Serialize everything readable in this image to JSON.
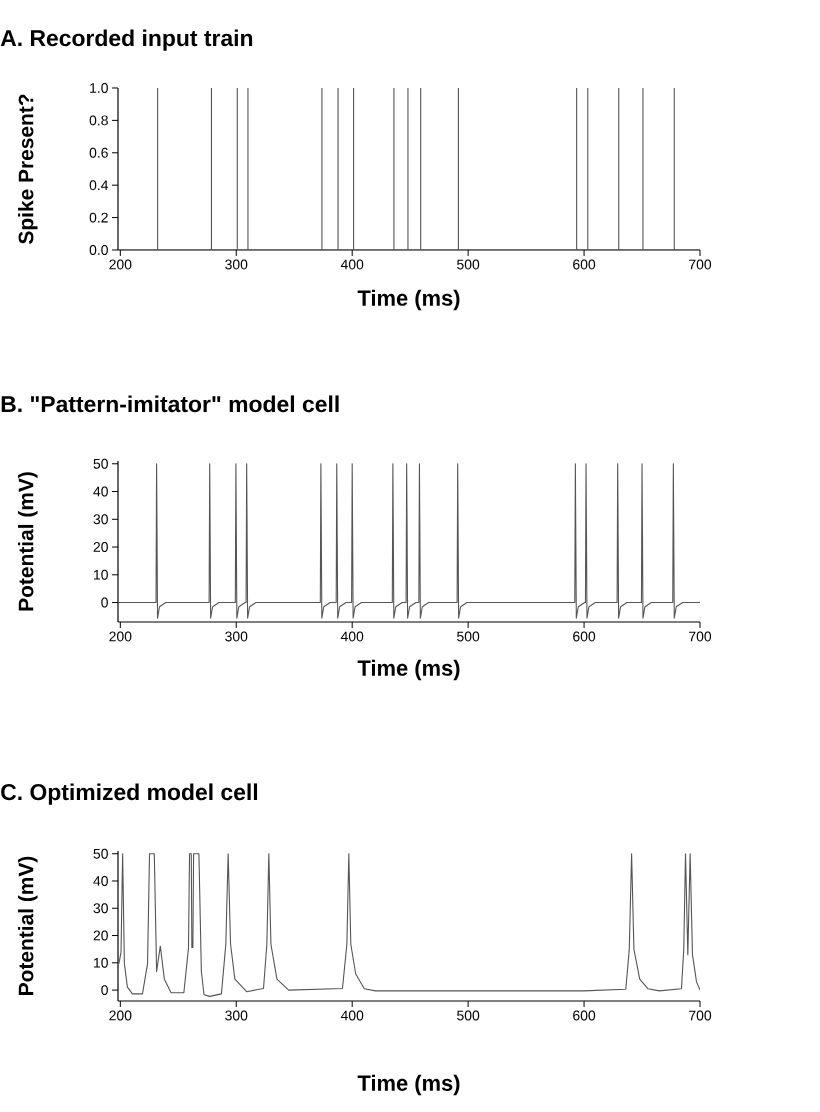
{
  "chart_data": [
    {
      "type": "line",
      "title": "A. Recorded input train",
      "xlabel": "Time (ms)",
      "ylabel": "Spike Present?",
      "xlim": [
        198,
        700
      ],
      "ylim": [
        0,
        1
      ],
      "xticks": [
        200,
        300,
        400,
        500,
        600,
        700
      ],
      "yticks": [
        {
          "value": 0,
          "label": "0.0"
        },
        {
          "value": 0.2,
          "label": "0.2"
        },
        {
          "value": 0.4,
          "label": "0.4"
        },
        {
          "value": 0.6,
          "label": "0.6"
        },
        {
          "value": 0.8,
          "label": "0.8"
        },
        {
          "value": 1,
          "label": "1.0"
        }
      ],
      "series": [
        {
          "color": "#555555",
          "x": [
            198,
            232.2,
            232.2,
            232.2,
            278.6,
            278.6,
            278.6,
            300.9,
            300.9,
            300.9,
            310.1,
            310.1,
            310.1,
            373.9,
            373.9,
            373.9,
            387.8,
            387.8,
            387.8,
            401.2,
            401.2,
            401.2,
            436.0,
            436.0,
            436.0,
            448.1,
            448.1,
            448.1,
            459.1,
            459.1,
            459.1,
            491.6,
            491.6,
            491.6,
            593.6,
            593.6,
            593.6,
            603.2,
            603.2,
            603.2,
            629.9,
            629.9,
            629.9,
            650.8,
            650.8,
            650.8,
            677.8,
            677.8,
            677.8,
            700
          ],
          "values": [
            0,
            0,
            1,
            0,
            0,
            1,
            0,
            0,
            1,
            0,
            0,
            1,
            0,
            0,
            1,
            0,
            0,
            1,
            0,
            0,
            1,
            0,
            0,
            1,
            0,
            0,
            1,
            0,
            0,
            1,
            0,
            0,
            1,
            0,
            0,
            1,
            0,
            0,
            1,
            0,
            0,
            1,
            0,
            0,
            1,
            0,
            0,
            1,
            0,
            0
          ]
        }
      ]
    },
    {
      "type": "line",
      "title": "B. \"Pattern-imitator\" model cell",
      "xlabel": "Time (ms)",
      "ylabel": "Potential (mV)",
      "xlim": [
        198,
        700
      ],
      "ylim": [
        -7,
        51
      ],
      "xticks": [
        200,
        300,
        400,
        500,
        600,
        700
      ],
      "yticks": [
        0,
        10,
        20,
        30,
        40,
        50
      ],
      "series": [
        {
          "color": "#555555",
          "x": [
            198,
            230.8,
            231.3,
            232.1,
            233.8,
            239.3,
            276.6,
            277.1,
            277.9,
            279.6,
            285.1,
            299.2,
            299.7,
            300.5,
            302.2,
            307.7,
            308.5,
            309.0,
            309.8,
            311.5,
            317.0,
            372.5,
            373.0,
            373.8,
            375.5,
            381.0,
            386.2,
            386.7,
            387.5,
            389.2,
            394.7,
            399.5,
            400.0,
            400.8,
            402.5,
            408.0,
            434.6,
            435.1,
            435.9,
            437.6,
            443.1,
            446.5,
            447.0,
            447.8,
            449.5,
            455.0,
            457.5,
            458.0,
            458.8,
            460.5,
            466.0,
            490.5,
            491.0,
            491.8,
            493.5,
            499.0,
            592.0,
            592.5,
            593.3,
            595.0,
            600.5,
            601.2,
            601.7,
            602.5,
            604.2,
            609.7,
            628.5,
            629.0,
            629.8,
            631.5,
            637.0,
            649.5,
            650.0,
            650.8,
            652.5,
            658.0,
            676.5,
            677.0,
            677.8,
            679.5,
            685.0,
            700
          ],
          "values": [
            0,
            0,
            50,
            -5.6,
            -1.5,
            0,
            0,
            50,
            -5.6,
            -1.5,
            0,
            0,
            50,
            -5.6,
            -1.5,
            0,
            0,
            50,
            -5.6,
            -1.5,
            0,
            0,
            50,
            -5.6,
            -1.5,
            0,
            0,
            50,
            -5.6,
            -1.5,
            0,
            0,
            50,
            -5.6,
            -1.5,
            0,
            0,
            50,
            -5.6,
            -1.5,
            0,
            0,
            50,
            -5.6,
            -1.5,
            0,
            0,
            50,
            -5.6,
            -1.5,
            0,
            0,
            50,
            -5.6,
            -1.5,
            0,
            0,
            50,
            -5.6,
            -1.5,
            0,
            0,
            50,
            -5.6,
            -1.5,
            0,
            0,
            50,
            -5.6,
            -1.5,
            0,
            0,
            50,
            -5.6,
            -1.5,
            0,
            0,
            50,
            -5.6,
            -1.5,
            0,
            0
          ]
        }
      ]
    },
    {
      "type": "line",
      "title": "C. Optimized model cell",
      "xlabel": "Time (ms)",
      "ylabel": "Potential (mV)",
      "xlim": [
        198,
        700
      ],
      "ylim": [
        -4,
        51
      ],
      "xticks": [
        200,
        300,
        400,
        500,
        600,
        700
      ],
      "yticks": [
        0,
        10,
        20,
        30,
        40,
        50
      ],
      "series": [
        {
          "color": "#555555",
          "x": [
            198.8,
            200.6,
            202.0,
            203.5,
            206.1,
            210.4,
            219.1,
            223.5,
            225.2,
            229.3,
            231.3,
            234.5,
            238.0,
            243.8,
            254.8,
            258.8,
            259.7,
            261.2,
            261.7,
            262.6,
            263.2,
            267.8,
            269.9,
            272.2,
            277.1,
            287.2,
            291.0,
            293.0,
            295.1,
            298.8,
            309.0,
            323.5,
            326.4,
            328.1,
            329.9,
            335.1,
            345.2,
            391.6,
            395.4,
            397.1,
            398.8,
            403.0,
            410.4,
            420.0,
            450.0,
            600.0,
            636.0,
            639.0,
            641.0,
            643.0,
            648.0,
            655.0,
            665.0,
            684.0,
            686.0,
            687.5,
            689.5,
            691.5,
            693.5,
            697.0,
            700.0
          ],
          "values": [
            9.7,
            13.9,
            50,
            9.7,
            1.1,
            -1.4,
            -1.4,
            9.7,
            50,
            50,
            6.8,
            16.1,
            4.0,
            -1.0,
            -1.0,
            15.4,
            50,
            50,
            15.6,
            15.6,
            50,
            50,
            6.8,
            -1.7,
            -2.3,
            -1.4,
            16.8,
            50,
            16.8,
            4.0,
            -0.6,
            0.6,
            16.8,
            50,
            16.8,
            4.0,
            0,
            0.6,
            16.8,
            50,
            16.8,
            6.0,
            0.5,
            -0.3,
            -0.3,
            -0.3,
            0.3,
            15,
            50,
            15,
            4,
            0.5,
            -0.3,
            0.5,
            15,
            50,
            13,
            50,
            13,
            3,
            0
          ]
        }
      ]
    }
  ]
}
